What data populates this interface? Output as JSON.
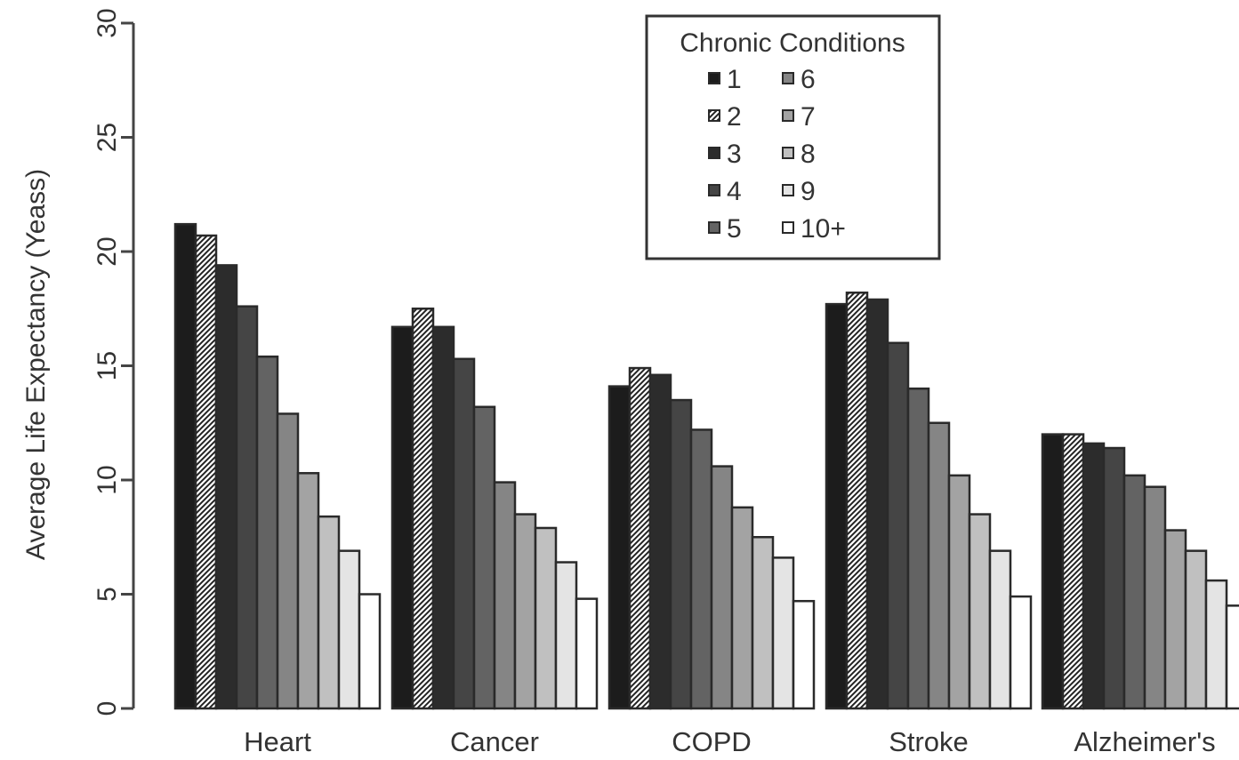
{
  "chart_data": {
    "type": "bar",
    "title": "",
    "xlabel": "",
    "ylabel": "Average Life Expectancy (Yeass)",
    "ylim": [
      0,
      30
    ],
    "yticks": [
      "0",
      "5",
      "10",
      "15",
      "20",
      "25",
      "30"
    ],
    "grid": false,
    "legend": {
      "title": "Chronic Conditions",
      "placement": "top-center",
      "columns": 2,
      "entries": [
        "1",
        "2",
        "3",
        "4",
        "5",
        "6",
        "7",
        "8",
        "9",
        "10+"
      ]
    },
    "categories": [
      "Heart",
      "Cancer",
      "COPD",
      "Stroke",
      "Alzheimer's"
    ],
    "series": [
      {
        "name": "1",
        "color": "#1c1c1c",
        "pattern": "solid",
        "values": [
          21.2,
          16.7,
          14.1,
          17.7,
          12.0
        ]
      },
      {
        "name": "2",
        "color": "#2a2a2a",
        "pattern": "hatch",
        "values": [
          20.7,
          17.5,
          14.9,
          18.2,
          12.0
        ]
      },
      {
        "name": "3",
        "color": "#2c2c2c",
        "pattern": "solid",
        "values": [
          19.4,
          16.7,
          14.6,
          17.9,
          11.6
        ]
      },
      {
        "name": "4",
        "color": "#454545",
        "pattern": "solid",
        "values": [
          17.6,
          15.3,
          13.5,
          16.0,
          11.4
        ]
      },
      {
        "name": "5",
        "color": "#636363",
        "pattern": "solid",
        "values": [
          15.4,
          13.2,
          12.2,
          14.0,
          10.2
        ]
      },
      {
        "name": "6",
        "color": "#858585",
        "pattern": "solid",
        "values": [
          12.9,
          9.9,
          10.6,
          12.5,
          9.7
        ]
      },
      {
        "name": "7",
        "color": "#a3a3a3",
        "pattern": "solid",
        "values": [
          10.3,
          8.5,
          8.8,
          10.2,
          7.8
        ]
      },
      {
        "name": "8",
        "color": "#c0c0c0",
        "pattern": "solid",
        "values": [
          8.4,
          7.9,
          7.5,
          8.5,
          6.9
        ]
      },
      {
        "name": "9",
        "color": "#e4e4e4",
        "pattern": "solid",
        "values": [
          6.9,
          6.4,
          6.6,
          6.9,
          5.6
        ]
      },
      {
        "name": "10+",
        "color": "#ffffff",
        "pattern": "solid",
        "values": [
          5.0,
          4.8,
          4.7,
          4.9,
          4.5
        ]
      }
    ]
  }
}
